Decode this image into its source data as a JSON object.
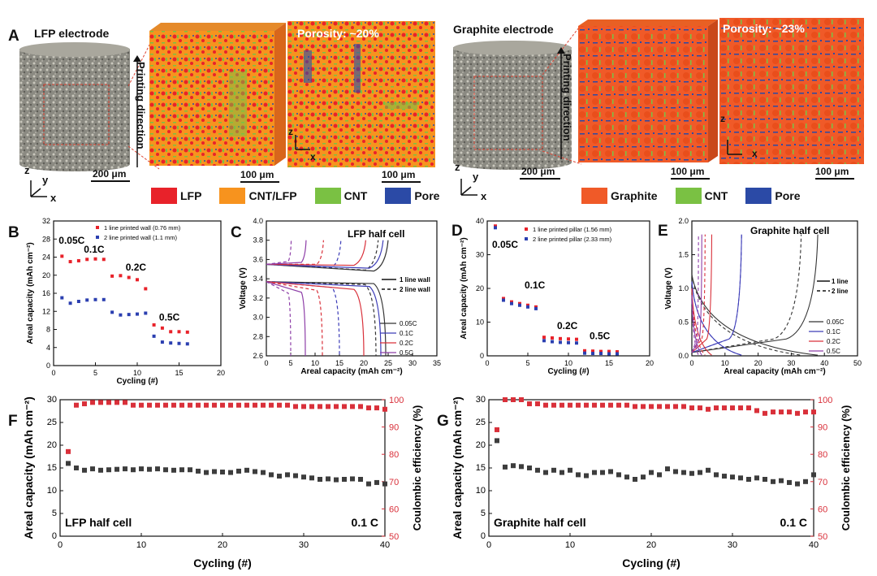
{
  "panel_a": {
    "label": "A",
    "lfp_title": "LFP electrode",
    "graphite_title": "Graphite electrode",
    "printing_direction": "Printing direction",
    "lfp_porosity": "Porosity: ~20%",
    "graphite_porosity": "Porosity: ~23%",
    "scale_200": "200 μm",
    "scale_100": "100 μm",
    "axis_z": "z",
    "axis_y": "y",
    "axis_x": "x",
    "lfp_legend": [
      {
        "label": "LFP",
        "color": "#e8222a"
      },
      {
        "label": "CNT/LFP",
        "color": "#f7931e"
      },
      {
        "label": "CNT",
        "color": "#7ac143"
      },
      {
        "label": "Pore",
        "color": "#2b4aa6"
      }
    ],
    "graphite_legend": [
      {
        "label": "Graphite",
        "color": "#f05a28"
      },
      {
        "label": "CNT",
        "color": "#7ac143"
      },
      {
        "label": "Pore",
        "color": "#2b4aa6"
      }
    ]
  },
  "panel_labels": {
    "b": "B",
    "c": "C",
    "d": "D",
    "e": "E",
    "f": "F",
    "g": "G"
  },
  "chart_data": [
    {
      "id": "B",
      "type": "scatter",
      "xlabel": "Cycling (#)",
      "ylabel": "Areal capacity (mAh cm⁻²)",
      "xlim": [
        0,
        20
      ],
      "ylim": [
        0,
        32
      ],
      "xticks": [
        0,
        5,
        10,
        15,
        20
      ],
      "yticks": [
        0,
        4,
        8,
        12,
        16,
        20,
        24,
        28,
        32
      ],
      "annotations": [
        "0.05C",
        "0.1C",
        "0.2C",
        "0.5C"
      ],
      "series": [
        {
          "name": "1 line printed wall (0.76 mm)",
          "color": "#e8222a",
          "x": [
            1,
            2,
            3,
            4,
            5,
            6,
            7,
            8,
            9,
            10,
            11,
            12,
            13,
            14,
            15,
            16
          ],
          "y": [
            24.2,
            23.0,
            23.2,
            23.5,
            23.6,
            23.5,
            19.8,
            19.9,
            19.5,
            19.0,
            17.0,
            9.0,
            8.3,
            7.5,
            7.5,
            7.4
          ]
        },
        {
          "name": "2 line printed wall (1.1 mm)",
          "color": "#2b3fb0",
          "x": [
            1,
            2,
            3,
            4,
            5,
            6,
            7,
            8,
            9,
            10,
            11,
            12,
            13,
            14,
            15,
            16
          ],
          "y": [
            15.0,
            13.8,
            14.2,
            14.5,
            14.6,
            14.6,
            11.8,
            11.2,
            11.3,
            11.4,
            11.6,
            6.5,
            5.2,
            5.0,
            4.9,
            4.8
          ]
        }
      ]
    },
    {
      "id": "C",
      "type": "line",
      "title": "LFP half cell",
      "xlabel": "Areal capacity (mAh cm⁻²)",
      "ylabel": "Voltage (V)",
      "xlim": [
        0,
        35
      ],
      "ylim": [
        2.6,
        4.0
      ],
      "xticks": [
        0,
        5,
        10,
        15,
        20,
        25,
        30,
        35
      ],
      "yticks": [
        2.6,
        2.8,
        3.0,
        3.2,
        3.4,
        3.6,
        3.8,
        4.0
      ],
      "style_legend": [
        "1 line wall",
        "2 line wall"
      ],
      "rate_legend": [
        {
          "label": "0.05C",
          "color": "#333333",
          "cap1": 24.5,
          "cap2": 22.5
        },
        {
          "label": "0.1C",
          "color": "#3d3db8",
          "cap1": 23.5,
          "cap2": 15.0
        },
        {
          "label": "0.2C",
          "color": "#d9303a",
          "cap1": 20.0,
          "cap2": 11.5
        },
        {
          "label": "0.5C",
          "color": "#8e3fa8",
          "cap1": 8.0,
          "cap2": 5.0
        }
      ]
    },
    {
      "id": "D",
      "type": "scatter",
      "xlabel": "Cycling (#)",
      "ylabel": "Areal capacity (mAh cm⁻²)",
      "xlim": [
        0,
        20
      ],
      "ylim": [
        0,
        40
      ],
      "xticks": [
        0,
        5,
        10,
        15,
        20
      ],
      "yticks": [
        0,
        10,
        20,
        30,
        40
      ],
      "annotations": [
        "0.05C",
        "0.1C",
        "0.2C",
        "0.5C"
      ],
      "series": [
        {
          "name": "1 line printed pillar (1.56 mm)",
          "color": "#e8222a",
          "x": [
            1,
            2,
            3,
            4,
            5,
            6,
            7,
            8,
            9,
            10,
            11,
            12,
            13,
            14,
            15,
            16
          ],
          "y": [
            38.5,
            17.0,
            16.0,
            15.5,
            15.0,
            14.5,
            5.5,
            5.3,
            5.1,
            5.0,
            4.9,
            1.5,
            1.4,
            1.3,
            1.3,
            1.2
          ]
        },
        {
          "name": "2 line printed pillar (2.33 mm)",
          "color": "#2b3fb0",
          "x": [
            1,
            2,
            3,
            4,
            5,
            6,
            7,
            8,
            9,
            10,
            11,
            12,
            13,
            14,
            15,
            16
          ],
          "y": [
            38.0,
            16.5,
            15.5,
            15.0,
            14.5,
            14.0,
            4.5,
            4.2,
            4.0,
            3.9,
            3.8,
            0.8,
            0.7,
            0.7,
            0.6,
            0.6
          ]
        }
      ]
    },
    {
      "id": "E",
      "type": "line",
      "title": "Graphite half cell",
      "xlabel": "Areal capacity (mAh cm⁻²)",
      "ylabel": "Voltage (V)",
      "xlim": [
        0,
        50
      ],
      "ylim": [
        0.0,
        2.0
      ],
      "xticks": [
        0,
        10,
        20,
        30,
        40,
        50
      ],
      "yticks": [
        0.0,
        0.5,
        1.0,
        1.5,
        2.0
      ],
      "style_legend": [
        "1 line",
        "2 line"
      ],
      "rate_legend": [
        {
          "label": "0.05C",
          "color": "#333333",
          "cap1": 38,
          "cap2": 33
        },
        {
          "label": "0.1C",
          "color": "#3d3db8",
          "cap1": 15,
          "cap2": 15
        },
        {
          "label": "0.2C",
          "color": "#d9303a",
          "cap1": 6,
          "cap2": 4
        },
        {
          "label": "0.5C",
          "color": "#8e3fa8",
          "cap1": 3,
          "cap2": 2
        }
      ]
    },
    {
      "id": "F",
      "type": "scatter",
      "label_left": "LFP half cell",
      "rate": "0.1 C",
      "xlabel": "Cycling (#)",
      "ylabel": "Areal capacity (mAh cm⁻²)",
      "y2label": "Coulombic efficiency (%)",
      "xlim": [
        0,
        40
      ],
      "ylim": [
        0,
        30
      ],
      "y2lim": [
        50,
        100
      ],
      "xticks": [
        0,
        10,
        20,
        30,
        40
      ],
      "yticks": [
        0,
        5,
        10,
        15,
        20,
        25,
        30
      ],
      "y2ticks": [
        50,
        60,
        70,
        80,
        90,
        100
      ],
      "capacity": [
        16.0,
        15.0,
        14.5,
        14.8,
        14.5,
        14.6,
        14.7,
        14.8,
        14.6,
        14.8,
        14.7,
        14.8,
        14.6,
        14.5,
        14.6,
        14.6,
        14.3,
        14.0,
        14.2,
        14.1,
        14.0,
        14.3,
        14.5,
        14.2,
        14.0,
        13.5,
        13.2,
        13.5,
        13.3,
        13.0,
        12.8,
        12.5,
        12.6,
        12.4,
        12.5,
        12.6,
        12.5,
        11.5,
        11.8,
        11.5
      ],
      "efficiency": [
        81,
        98,
        98.5,
        99,
        99,
        99,
        99,
        99,
        98,
        98,
        98,
        98,
        98,
        98,
        98,
        98,
        98,
        98,
        98,
        98,
        98,
        98,
        98,
        98,
        98,
        98,
        98,
        98,
        97.5,
        97.5,
        97.5,
        97.5,
        97.5,
        97.5,
        97.5,
        97.5,
        97.5,
        97,
        97,
        96.5
      ]
    },
    {
      "id": "G",
      "type": "scatter",
      "label_left": "Graphite half cell",
      "rate": "0.1 C",
      "xlabel": "Cycling (#)",
      "ylabel": "Areal capacity (mAh cm⁻²)",
      "y2label": "Coulombic efficiency (%)",
      "xlim": [
        0,
        40
      ],
      "ylim": [
        0,
        30
      ],
      "y2lim": [
        50,
        100
      ],
      "xticks": [
        0,
        10,
        20,
        30,
        40
      ],
      "yticks": [
        0,
        5,
        10,
        15,
        20,
        25,
        30
      ],
      "y2ticks": [
        50,
        60,
        70,
        80,
        90,
        100
      ],
      "capacity": [
        21.0,
        15.2,
        15.5,
        15.3,
        15.0,
        14.5,
        14.0,
        14.5,
        14.0,
        14.5,
        13.5,
        13.3,
        14.0,
        14.0,
        14.2,
        13.5,
        13.0,
        12.5,
        13.0,
        14.0,
        13.5,
        14.8,
        14.2,
        14.0,
        13.8,
        14.0,
        14.5,
        13.5,
        13.2,
        13.0,
        12.8,
        12.5,
        12.8,
        12.5,
        12.0,
        12.2,
        11.8,
        11.5,
        12.0,
        13.5
      ],
      "efficiency": [
        89,
        100,
        100,
        100,
        98.5,
        98.5,
        98,
        98,
        98,
        98,
        98,
        98,
        98,
        98,
        98,
        98,
        98,
        97.5,
        97.5,
        97.5,
        97.5,
        97.5,
        97.5,
        97.5,
        97,
        97,
        96.5,
        97,
        97,
        97,
        97,
        97,
        96,
        95,
        95.5,
        95.5,
        95.5,
        95,
        95.5,
        95.5
      ]
    }
  ]
}
